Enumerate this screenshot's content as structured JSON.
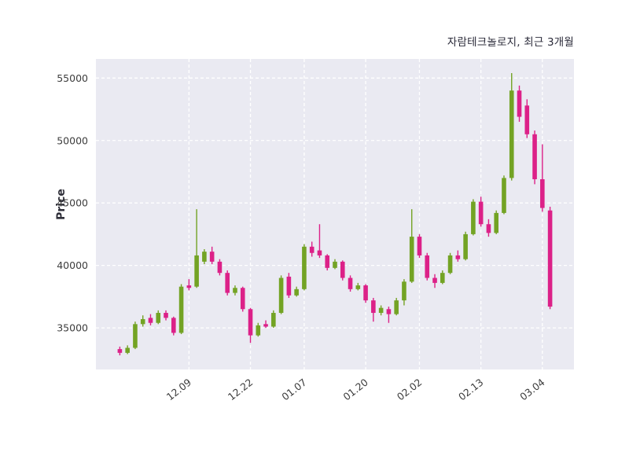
{
  "chart_data": {
    "type": "candlestick",
    "title": "자람테크놀로지, 최근 3개월",
    "ylabel": "Price",
    "y_ticks": [
      35000,
      40000,
      45000,
      50000,
      55000
    ],
    "x_tick_labels": [
      "12.09",
      "12.22",
      "01.07",
      "01.20",
      "02.02",
      "02.13",
      "03.04"
    ],
    "x_tick_indices": [
      9,
      17,
      24,
      32,
      39,
      47,
      55
    ],
    "ylim": [
      31670,
      56530
    ],
    "grid": "on",
    "grid_style": "white dashed on shaded plot area",
    "colors": {
      "up": "#73a324",
      "down": "#dc2188",
      "plot_bg": "#eaeaf2",
      "grid": "#ffffff",
      "tick_text": "#3d3d3d",
      "title_text": "#2b2b3a"
    },
    "candles": [
      [
        33300,
        33500,
        32800,
        33000
      ],
      [
        33000,
        33600,
        32900,
        33400
      ],
      [
        33400,
        35500,
        33300,
        35300
      ],
      [
        35300,
        36000,
        35100,
        35700
      ],
      [
        35800,
        36100,
        35200,
        35400
      ],
      [
        35400,
        36400,
        35300,
        36200
      ],
      [
        36200,
        36400,
        35600,
        35800
      ],
      [
        35800,
        35900,
        34400,
        34600
      ],
      [
        34600,
        38500,
        34500,
        38300
      ],
      [
        38400,
        38900,
        38000,
        38200
      ],
      [
        38300,
        44500,
        38200,
        40800
      ],
      [
        40300,
        41300,
        40100,
        41100
      ],
      [
        41100,
        41500,
        40100,
        40300
      ],
      [
        40300,
        40500,
        39200,
        39400
      ],
      [
        39400,
        39600,
        37600,
        37800
      ],
      [
        37800,
        38400,
        37600,
        38200
      ],
      [
        38200,
        38300,
        36300,
        36500
      ],
      [
        36500,
        36600,
        33800,
        34400
      ],
      [
        34400,
        35400,
        34300,
        35200
      ],
      [
        35300,
        35600,
        35000,
        35100
      ],
      [
        35100,
        36400,
        35000,
        36200
      ],
      [
        36200,
        39200,
        36100,
        39000
      ],
      [
        39100,
        39400,
        37400,
        37600
      ],
      [
        37600,
        38300,
        37500,
        38100
      ],
      [
        38100,
        41700,
        38000,
        41500
      ],
      [
        41500,
        41900,
        40700,
        41000
      ],
      [
        41200,
        43300,
        40600,
        40800
      ],
      [
        40800,
        40900,
        39600,
        39800
      ],
      [
        39800,
        40500,
        39700,
        40300
      ],
      [
        40300,
        40400,
        38800,
        39000
      ],
      [
        39000,
        39200,
        37900,
        38100
      ],
      [
        38100,
        38600,
        38000,
        38400
      ],
      [
        38400,
        38500,
        37000,
        37200
      ],
      [
        37200,
        37400,
        35500,
        36200
      ],
      [
        36200,
        36800,
        36000,
        36600
      ],
      [
        36500,
        36700,
        35400,
        36100
      ],
      [
        36100,
        37400,
        36000,
        37200
      ],
      [
        37200,
        38900,
        36800,
        38700
      ],
      [
        38700,
        44500,
        38600,
        42300
      ],
      [
        42300,
        42500,
        40600,
        40800
      ],
      [
        40800,
        41000,
        38800,
        39000
      ],
      [
        39000,
        39300,
        38200,
        38600
      ],
      [
        38600,
        39600,
        38500,
        39400
      ],
      [
        39400,
        41000,
        39300,
        40800
      ],
      [
        40800,
        41200,
        40300,
        40500
      ],
      [
        40500,
        42700,
        40400,
        42500
      ],
      [
        42500,
        45300,
        42400,
        45100
      ],
      [
        45100,
        45500,
        43100,
        43300
      ],
      [
        43300,
        43700,
        42300,
        42600
      ],
      [
        42600,
        44400,
        42500,
        44200
      ],
      [
        44200,
        47200,
        44100,
        47000
      ],
      [
        47000,
        55400,
        46800,
        54000
      ],
      [
        54000,
        54400,
        51500,
        51900
      ],
      [
        52800,
        53300,
        50200,
        50500
      ],
      [
        50500,
        50800,
        46500,
        46900
      ],
      [
        46900,
        49700,
        44300,
        44600
      ],
      [
        44400,
        44700,
        36500,
        36700
      ]
    ]
  }
}
